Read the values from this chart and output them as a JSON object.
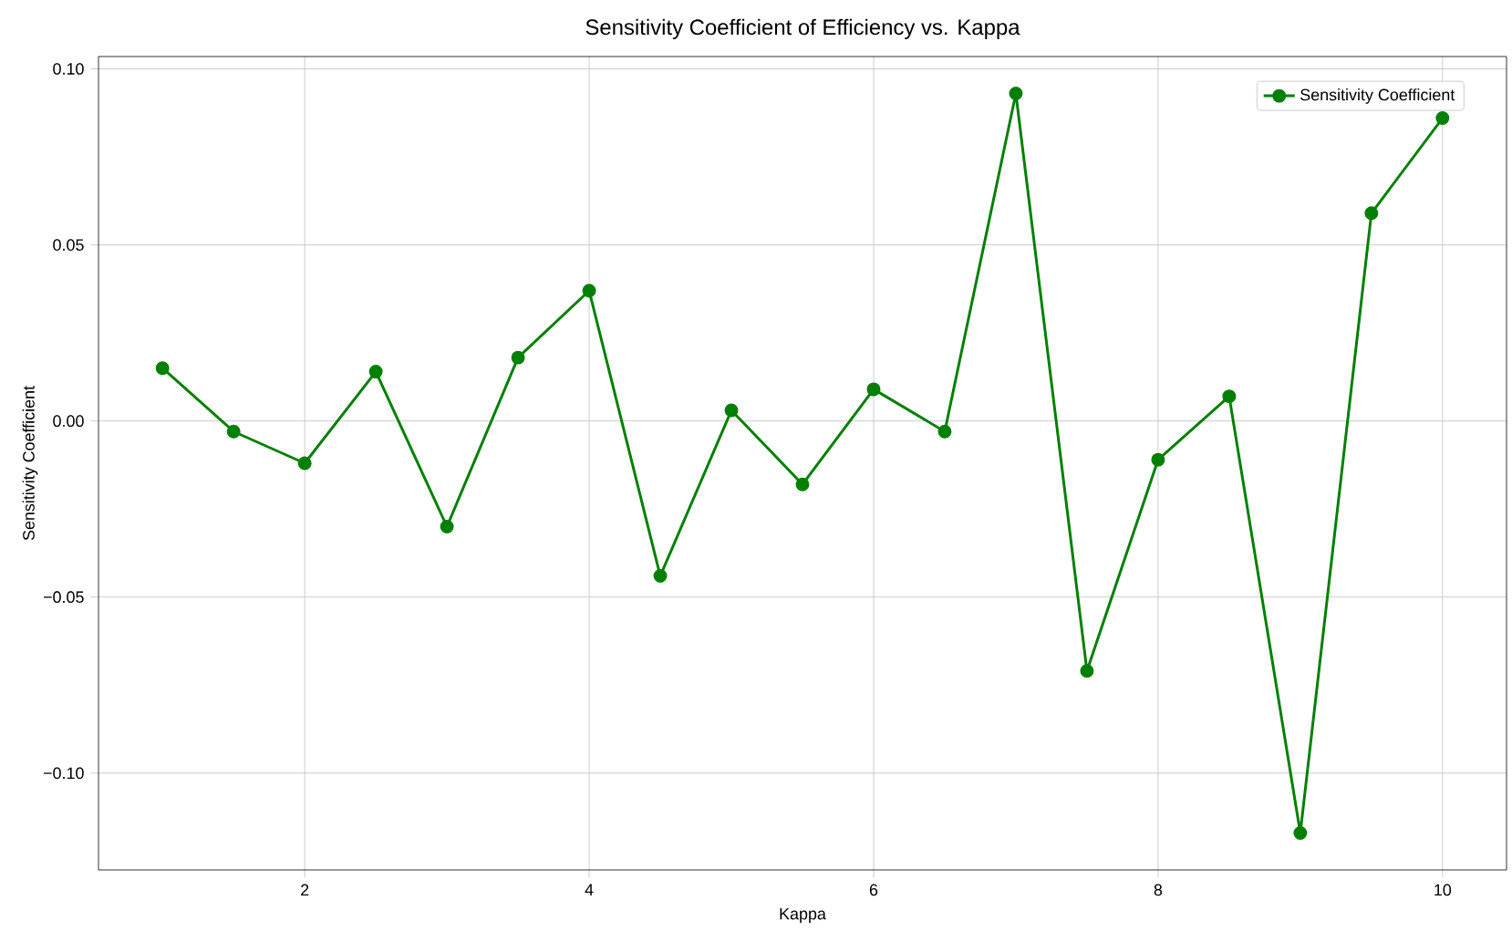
{
  "chart_data": {
    "type": "line",
    "title": "Sensitivity Coefficient of Efficiency vs. Kappa",
    "xlabel": "Kappa",
    "ylabel": "Sensitivity Coefficient",
    "x": [
      1,
      1.5,
      2,
      2.5,
      3,
      3.5,
      4,
      4.5,
      5,
      5.5,
      6,
      6.5,
      7,
      7.5,
      8,
      8.5,
      9,
      9.5,
      10
    ],
    "series": [
      {
        "name": "Sensitivity Coefficient",
        "color": "#008000",
        "values": [
          0.015,
          -0.003,
          -0.012,
          0.014,
          -0.03,
          0.018,
          0.037,
          -0.044,
          0.003,
          -0.018,
          0.009,
          -0.003,
          0.093,
          -0.071,
          -0.011,
          0.007,
          -0.117,
          0.059,
          0.086
        ]
      }
    ],
    "xlim": [
      0.55,
      10.45
    ],
    "ylim": [
      -0.1275,
      0.1035
    ],
    "xticks": [
      2,
      4,
      6,
      8,
      10
    ],
    "yticks": [
      {
        "value": -0.1,
        "label": "−0.10"
      },
      {
        "value": -0.05,
        "label": "−0.05"
      },
      {
        "value": 0,
        "label": "0.00"
      },
      {
        "value": 0.05,
        "label": "0.05"
      },
      {
        "value": 0.1,
        "label": "0.10"
      }
    ],
    "grid": true,
    "legend": "top right",
    "marker": "circle",
    "line_style": "solid"
  }
}
